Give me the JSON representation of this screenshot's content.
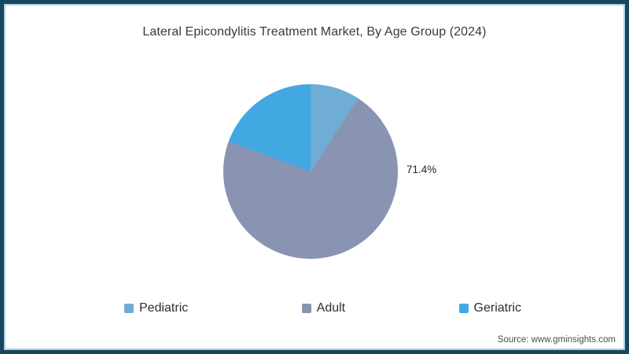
{
  "frame": {
    "border_color": "#17465F",
    "inner_line_color": "#ADD1DD",
    "background": "#FFFFFF"
  },
  "header": {
    "title": "Lateral Epicondylitis Treatment Market, By Age Group (2024)"
  },
  "chart_data": {
    "type": "pie",
    "title": "Lateral Epicondylitis Treatment Market, By Age Group (2024)",
    "series": [
      {
        "name": "Pediatric",
        "value": 9.2,
        "color": "#6FADD6",
        "label": ""
      },
      {
        "name": "Adult",
        "value": 71.4,
        "color": "#8894B1",
        "label": "71.4%"
      },
      {
        "name": "Geriatric",
        "value": 19.4,
        "color": "#42A8E1",
        "label": ""
      }
    ],
    "start_angle_deg": 0,
    "direction": "clockwise",
    "legend_position": "bottom",
    "data_labels_visible": [
      "71.4%"
    ]
  },
  "footer": {
    "source": "Source: www.gminsights.com"
  }
}
